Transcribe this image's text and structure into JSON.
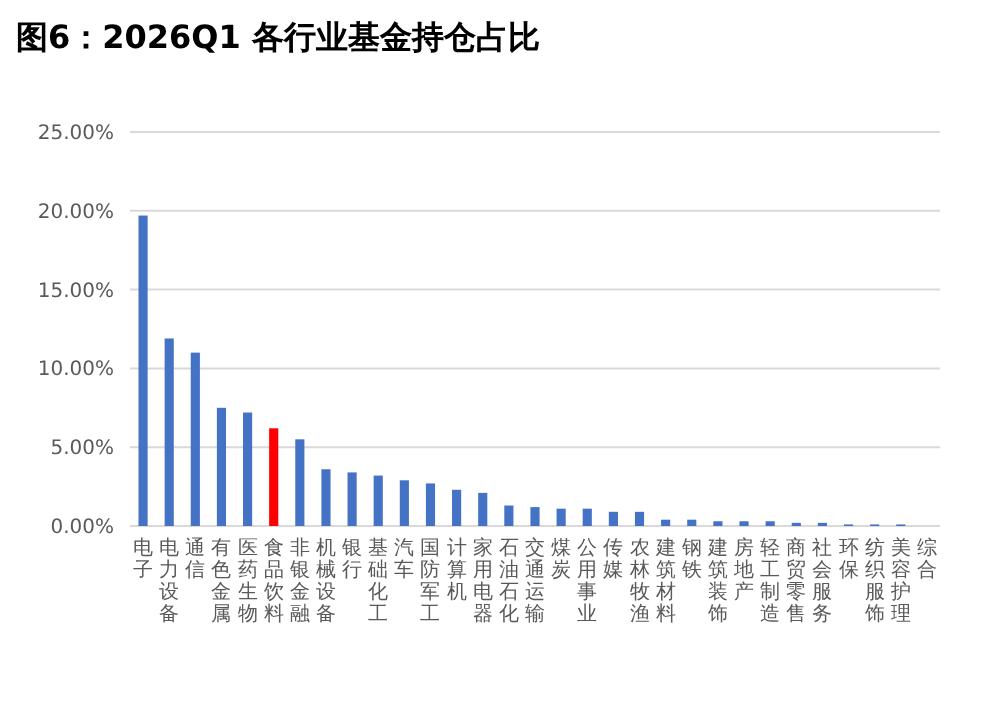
{
  "chart_data": {
    "type": "bar",
    "title": "图6：2026Q1 各行业基金持仓占比",
    "categories": [
      "电子",
      "电力设备",
      "通信",
      "有色金属",
      "医药生物",
      "食品饮料",
      "非银金融",
      "机械设备",
      "银行",
      "基础化工",
      "汽车",
      "国防军工",
      "计算机",
      "家用电器",
      "石油石化",
      "交通运输",
      "煤炭",
      "公用事业",
      "传媒",
      "农林牧渔",
      "建筑材料",
      "钢铁",
      "建筑装饰",
      "房地产",
      "轻工制造",
      "商贸零售",
      "社会服务",
      "环保",
      "纺织服饰",
      "美容护理",
      "综合"
    ],
    "values": [
      19.7,
      11.9,
      11.0,
      7.5,
      7.2,
      6.2,
      5.5,
      3.6,
      3.4,
      3.2,
      2.9,
      2.7,
      2.3,
      2.1,
      1.3,
      1.2,
      1.1,
      1.1,
      0.9,
      0.9,
      0.4,
      0.4,
      0.3,
      0.3,
      0.3,
      0.2,
      0.2,
      0.1,
      0.1,
      0.1,
      0.0
    ],
    "colors": [
      "#4472c4",
      "#4472c4",
      "#4472c4",
      "#4472c4",
      "#4472c4",
      "#ff0000",
      "#4472c4",
      "#4472c4",
      "#4472c4",
      "#4472c4",
      "#4472c4",
      "#4472c4",
      "#4472c4",
      "#4472c4",
      "#4472c4",
      "#4472c4",
      "#4472c4",
      "#4472c4",
      "#4472c4",
      "#4472c4",
      "#4472c4",
      "#4472c4",
      "#4472c4",
      "#4472c4",
      "#4472c4",
      "#4472c4",
      "#4472c4",
      "#4472c4",
      "#4472c4",
      "#4472c4",
      "#4472c4"
    ],
    "ylim": [
      0,
      25
    ],
    "yticks": [
      {
        "value": 0,
        "label": "0.00%"
      },
      {
        "value": 5,
        "label": "5.00%"
      },
      {
        "value": 10,
        "label": "10.00%"
      },
      {
        "value": 15,
        "label": "15.00%"
      },
      {
        "value": 20,
        "label": "20.00%"
      },
      {
        "value": 25,
        "label": "25.00%"
      }
    ],
    "grid": "y"
  }
}
